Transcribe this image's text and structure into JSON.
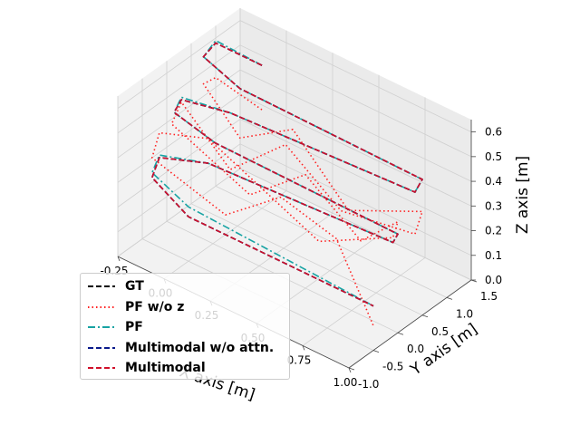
{
  "chart_data": {
    "type": "line",
    "projection": "3d",
    "title": "",
    "xlabel": "X axis [m]",
    "ylabel": "Y axis [m]",
    "zlabel": "Z axis [m]",
    "xlim": [
      -0.25,
      1.0
    ],
    "ylim": [
      -1.0,
      1.5
    ],
    "zlim": [
      0.0,
      0.65
    ],
    "x_ticks": [
      "-0.25",
      "0.00",
      "0.25",
      "0.50",
      "0.75",
      "1.00"
    ],
    "y_ticks": [
      "-1.0",
      "-0.5",
      "0.0",
      "0.5",
      "1.0",
      "1.5"
    ],
    "z_ticks": [
      "0.0",
      "0.1",
      "0.2",
      "0.3",
      "0.4",
      "0.5",
      "0.6"
    ],
    "grid": true,
    "legend_position": "lower-left",
    "series": [
      {
        "name": "GT",
        "color": "#000000",
        "dash": "dashed",
        "x": [
          0.0,
          -0.25,
          -0.25,
          0.0,
          1.0,
          1.0,
          0.0,
          -0.25,
          -0.25,
          0.0,
          1.0,
          1.0,
          0.0,
          -0.25,
          -0.25,
          0.0,
          1.0
        ],
        "y": [
          1.0,
          1.0,
          0.75,
          0.55,
          0.5,
          0.35,
          0.35,
          0.3,
          0.15,
          0.05,
          0.0,
          -0.1,
          -0.1,
          -0.15,
          -0.3,
          -0.5,
          -0.5
        ],
        "z": [
          0.58,
          0.58,
          0.56,
          0.55,
          0.55,
          0.52,
          0.48,
          0.45,
          0.42,
          0.4,
          0.4,
          0.38,
          0.34,
          0.28,
          0.22,
          0.18,
          0.18
        ]
      },
      {
        "name": "PF w/o z",
        "color": "#ff2020",
        "dash": "dotted",
        "x": [
          0.0,
          -0.25,
          -0.25,
          0.0,
          0.3,
          0.6,
          1.0,
          1.0,
          0.6,
          0.3,
          0.0,
          -0.25,
          -0.25,
          0.2,
          0.5,
          0.8,
          1.0,
          1.0,
          0.6,
          0.3,
          0.0,
          -0.25,
          -0.25,
          0.2,
          0.5,
          0.8,
          1.0
        ],
        "y": [
          1.0,
          1.0,
          0.75,
          0.55,
          0.5,
          0.5,
          0.5,
          0.35,
          0.35,
          0.35,
          0.35,
          0.3,
          0.1,
          0.0,
          0.0,
          0.0,
          0.0,
          -0.1,
          -0.1,
          -0.1,
          -0.1,
          -0.15,
          -0.3,
          -0.5,
          -0.5,
          -0.5,
          -0.5
        ],
        "z": [
          0.4,
          0.44,
          0.45,
          0.35,
          0.5,
          0.28,
          0.42,
          0.35,
          0.3,
          0.46,
          0.25,
          0.44,
          0.38,
          0.27,
          0.46,
          0.3,
          0.45,
          0.4,
          0.24,
          0.34,
          0.44,
          0.38,
          0.3,
          0.26,
          0.44,
          0.38,
          0.1
        ]
      },
      {
        "name": "PF",
        "color": "#17a3a3",
        "dash": "dashdot",
        "x": [
          0.0,
          -0.25,
          -0.25,
          0.0,
          1.0,
          1.0,
          0.0,
          -0.25,
          -0.25,
          0.0,
          1.0,
          1.0,
          0.0,
          -0.25,
          -0.25,
          0.0,
          1.0
        ],
        "y": [
          1.0,
          1.0,
          0.75,
          0.55,
          0.5,
          0.35,
          0.35,
          0.3,
          0.15,
          0.05,
          0.0,
          -0.1,
          -0.1,
          -0.15,
          -0.3,
          -0.5,
          -0.5
        ],
        "z": [
          0.58,
          0.59,
          0.56,
          0.55,
          0.55,
          0.52,
          0.48,
          0.46,
          0.42,
          0.4,
          0.4,
          0.38,
          0.34,
          0.29,
          0.24,
          0.22,
          0.18
        ]
      },
      {
        "name": "Multimodal w/o attn.",
        "color": "#0a1a8c",
        "dash": "dashed",
        "x": [
          0.0,
          -0.25,
          -0.25,
          0.0,
          1.0,
          1.0,
          0.0,
          -0.25,
          -0.25,
          0.0,
          1.0,
          1.0,
          0.0,
          -0.25,
          -0.25,
          0.0,
          1.0
        ],
        "y": [
          1.0,
          1.0,
          0.75,
          0.55,
          0.5,
          0.35,
          0.35,
          0.3,
          0.15,
          0.05,
          0.0,
          -0.1,
          -0.1,
          -0.15,
          -0.3,
          -0.5,
          -0.5
        ],
        "z": [
          0.58,
          0.58,
          0.56,
          0.55,
          0.55,
          0.52,
          0.48,
          0.45,
          0.42,
          0.4,
          0.4,
          0.38,
          0.34,
          0.28,
          0.22,
          0.18,
          0.18
        ]
      },
      {
        "name": "Multimodal",
        "color": "#d0102a",
        "dash": "dashed",
        "x": [
          0.0,
          -0.25,
          -0.25,
          0.0,
          1.0,
          1.0,
          0.0,
          -0.25,
          -0.25,
          0.0,
          1.0,
          1.0,
          0.0,
          -0.25,
          -0.25,
          0.0,
          1.0
        ],
        "y": [
          1.0,
          1.0,
          0.75,
          0.55,
          0.5,
          0.35,
          0.35,
          0.3,
          0.15,
          0.05,
          0.0,
          -0.1,
          -0.1,
          -0.15,
          -0.3,
          -0.5,
          -0.5
        ],
        "z": [
          0.58,
          0.58,
          0.56,
          0.55,
          0.55,
          0.52,
          0.48,
          0.45,
          0.42,
          0.4,
          0.4,
          0.38,
          0.34,
          0.28,
          0.22,
          0.18,
          0.18
        ]
      }
    ]
  }
}
